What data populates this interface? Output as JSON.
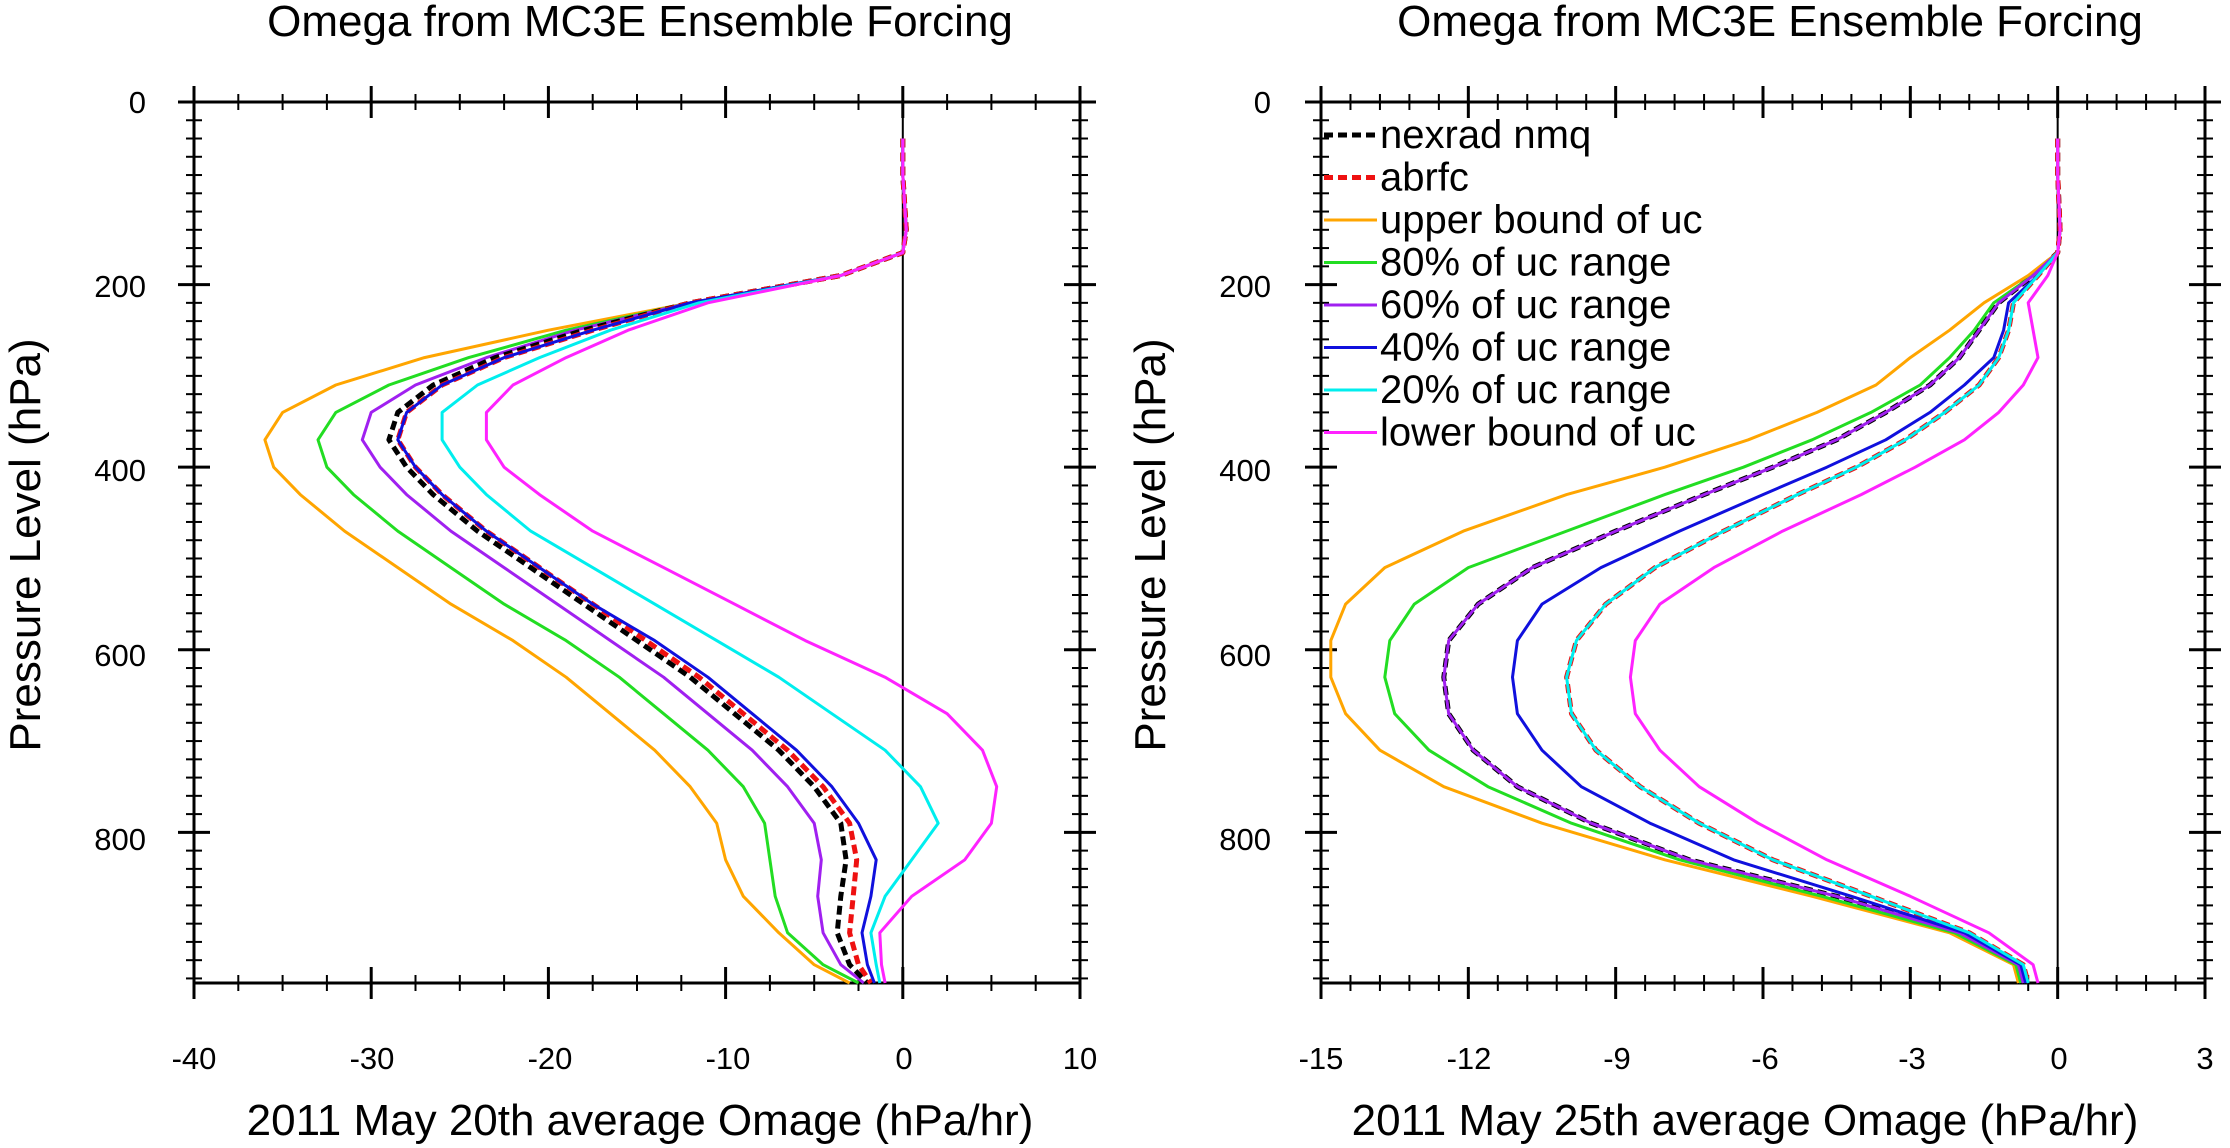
{
  "chart_data": [
    {
      "type": "line",
      "title": "Omega from MC3E Ensemble Forcing",
      "xlabel": "2011 May 20th average Omage (hPa/hr)",
      "ylabel": "Pressure Level (hPa)",
      "xlim": [
        -40,
        10
      ],
      "ylim": [
        965,
        0
      ],
      "y_reversed": true,
      "xticks": [
        "-40",
        "-30",
        "-20",
        "-10",
        "0",
        "10"
      ],
      "yticks": [
        "0",
        "200",
        "400",
        "600",
        "800"
      ],
      "zero_line": true,
      "y_levels": [
        40,
        80,
        140,
        165,
        190,
        220,
        250,
        280,
        310,
        340,
        370,
        400,
        430,
        470,
        510,
        550,
        590,
        630,
        670,
        710,
        750,
        790,
        830,
        870,
        910,
        945,
        965
      ],
      "series": [
        {
          "name": "upper bound of uc",
          "color": "#FFA500",
          "dashed": false,
          "values": [
            0,
            0,
            0.2,
            0,
            -3.5,
            -12,
            -20,
            -27,
            -32,
            -35,
            -36,
            -35.5,
            -34,
            -31.5,
            -28.5,
            -25.5,
            -22,
            -19,
            -16.5,
            -14,
            -12,
            -10.5,
            -10,
            -9,
            -7,
            -5,
            -3
          ]
        },
        {
          "name": "80% of uc range",
          "color": "#22DD22",
          "dashed": false,
          "values": [
            0,
            0,
            0.2,
            0,
            -3.5,
            -12,
            -19,
            -24.5,
            -29,
            -32,
            -33,
            -32.5,
            -31,
            -28.5,
            -25.5,
            -22.5,
            -19,
            -16,
            -13.5,
            -11,
            -9,
            -7.8,
            -7.5,
            -7.2,
            -6.5,
            -4.5,
            -2.5
          ]
        },
        {
          "name": "60% of uc range",
          "color": "#A020F0",
          "dashed": false,
          "values": [
            0,
            0,
            0.2,
            0,
            -3.5,
            -12,
            -18.5,
            -23.5,
            -27.5,
            -30,
            -30.5,
            -29.5,
            -28,
            -25.5,
            -22.5,
            -19.5,
            -16.5,
            -13.5,
            -11,
            -8.5,
            -6.5,
            -5,
            -4.6,
            -4.8,
            -4.5,
            -3.5,
            -2.2
          ]
        },
        {
          "name": "nexrad nmq",
          "color": "#000000",
          "dashed": true,
          "values": [
            0,
            0,
            0.2,
            0,
            -3.5,
            -12,
            -18,
            -23,
            -26.5,
            -28.5,
            -29,
            -28,
            -26.5,
            -24,
            -21,
            -18,
            -15,
            -12,
            -9.5,
            -7,
            -5,
            -3.5,
            -3.2,
            -3.5,
            -3.7,
            -3,
            -2
          ]
        },
        {
          "name": "abrfc",
          "color": "#EE1111",
          "dashed": true,
          "values": [
            0,
            0,
            0.2,
            0,
            -3.5,
            -12,
            -17.5,
            -22.5,
            -26,
            -28,
            -28.5,
            -27.5,
            -26,
            -23.5,
            -20.5,
            -17.5,
            -14.5,
            -11.5,
            -9,
            -6.5,
            -4.5,
            -3,
            -2.6,
            -2.8,
            -3,
            -2.5,
            -1.8
          ]
        },
        {
          "name": "40% of uc range",
          "color": "#1010DD",
          "dashed": false,
          "values": [
            0,
            0,
            0.2,
            0,
            -3.5,
            -12,
            -17.5,
            -22.5,
            -26,
            -28,
            -28.5,
            -27.5,
            -26,
            -23.5,
            -20.5,
            -17.5,
            -14,
            -11,
            -8.5,
            -6,
            -4,
            -2.5,
            -1.5,
            -1.8,
            -2.3,
            -2,
            -1.6
          ]
        },
        {
          "name": "20% of uc range",
          "color": "#00EEEE",
          "dashed": false,
          "values": [
            0,
            0,
            0.2,
            0,
            -3.5,
            -11.5,
            -16.5,
            -20.5,
            -24,
            -26,
            -26,
            -25,
            -23.5,
            -21,
            -17.5,
            -14,
            -10.5,
            -7,
            -4,
            -1,
            1,
            2,
            0.5,
            -1,
            -1.8,
            -1.5,
            -1.3
          ]
        },
        {
          "name": "lower bound of uc",
          "color": "#FF22FF",
          "dashed": false,
          "values": [
            0,
            0,
            0.2,
            0,
            -3.5,
            -11,
            -15.5,
            -19,
            -22,
            -23.5,
            -23.5,
            -22.5,
            -20.5,
            -17.5,
            -13.5,
            -9.5,
            -5.5,
            -1,
            2.5,
            4.5,
            5.3,
            5,
            3.5,
            0.5,
            -1.3,
            -1.2,
            -1
          ]
        }
      ]
    },
    {
      "type": "line",
      "title": "Omega from MC3E Ensemble Forcing",
      "xlabel": "2011 May 25th average Omage (hPa/hr)",
      "ylabel": "Pressure Level (hPa)",
      "xlim": [
        -15,
        3
      ],
      "ylim": [
        965,
        0
      ],
      "y_reversed": true,
      "xticks": [
        "-15",
        "-12",
        "-9",
        "-6",
        "-3",
        "0",
        "3"
      ],
      "yticks": [
        "0",
        "200",
        "400",
        "600",
        "800"
      ],
      "zero_line": true,
      "legend": {
        "position": "top-left"
      },
      "y_levels": [
        40,
        80,
        140,
        165,
        190,
        220,
        250,
        280,
        310,
        340,
        370,
        400,
        430,
        470,
        510,
        550,
        590,
        630,
        670,
        710,
        750,
        790,
        830,
        870,
        910,
        945,
        965
      ],
      "series": [
        {
          "name": "nexrad nmq",
          "color": "#000000",
          "dashed": true,
          "values": [
            0,
            0,
            0.05,
            0,
            -0.5,
            -1.2,
            -1.6,
            -2,
            -2.6,
            -3.5,
            -4.5,
            -5.8,
            -7.2,
            -9,
            -10.7,
            -11.8,
            -12.4,
            -12.5,
            -12.4,
            -11.9,
            -11,
            -9.5,
            -7.5,
            -4.5,
            -2,
            -0.8,
            -0.7
          ]
        },
        {
          "name": "abrfc",
          "color": "#EE1111",
          "dashed": true,
          "values": [
            0,
            0,
            0.05,
            0,
            -0.4,
            -0.9,
            -1,
            -1.2,
            -1.6,
            -2.3,
            -3.1,
            -4.1,
            -5.3,
            -6.8,
            -8.2,
            -9.2,
            -9.8,
            -10,
            -9.9,
            -9.4,
            -8.5,
            -7.3,
            -5.8,
            -3.8,
            -1.8,
            -0.7,
            -0.6
          ]
        },
        {
          "name": "upper bound of uc",
          "color": "#FFA500",
          "dashed": false,
          "values": [
            0,
            0,
            0.05,
            0,
            -0.6,
            -1.5,
            -2.2,
            -3,
            -3.7,
            -4.9,
            -6.3,
            -8,
            -10,
            -12.1,
            -13.7,
            -14.5,
            -14.8,
            -14.8,
            -14.5,
            -13.8,
            -12.5,
            -10.5,
            -8,
            -5,
            -2.2,
            -0.9,
            -0.8
          ]
        },
        {
          "name": "80% of uc range",
          "color": "#22DD22",
          "dashed": false,
          "values": [
            0,
            0,
            0.05,
            0,
            -0.5,
            -1.3,
            -1.7,
            -2.2,
            -2.8,
            -3.8,
            -5,
            -6.4,
            -8,
            -10,
            -12,
            -13.1,
            -13.6,
            -13.7,
            -13.5,
            -12.8,
            -11.6,
            -9.9,
            -7.7,
            -4.8,
            -2.1,
            -0.85,
            -0.75
          ]
        },
        {
          "name": "60% of uc range",
          "color": "#A020F0",
          "dashed": false,
          "values": [
            0,
            0,
            0.05,
            0,
            -0.5,
            -1.2,
            -1.6,
            -2,
            -2.6,
            -3.5,
            -4.5,
            -5.8,
            -7.2,
            -9,
            -10.7,
            -11.8,
            -12.4,
            -12.5,
            -12.4,
            -11.9,
            -11,
            -9.5,
            -7.5,
            -4.5,
            -2,
            -0.8,
            -0.7
          ]
        },
        {
          "name": "40% of uc range",
          "color": "#1010DD",
          "dashed": false,
          "values": [
            0,
            0,
            0.05,
            0,
            -0.4,
            -1,
            -1.1,
            -1.3,
            -1.9,
            -2.6,
            -3.5,
            -4.7,
            -6,
            -7.7,
            -9.3,
            -10.5,
            -11,
            -11.1,
            -11,
            -10.5,
            -9.7,
            -8.3,
            -6.6,
            -4.2,
            -1.9,
            -0.75,
            -0.65
          ]
        },
        {
          "name": "20% of uc range",
          "color": "#00EEEE",
          "dashed": false,
          "values": [
            0,
            0,
            0.05,
            0,
            -0.4,
            -0.9,
            -1,
            -1.2,
            -1.6,
            -2.3,
            -3.1,
            -4.1,
            -5.3,
            -6.8,
            -8.2,
            -9.2,
            -9.8,
            -10,
            -9.9,
            -9.4,
            -8.5,
            -7.3,
            -5.8,
            -3.8,
            -1.8,
            -0.7,
            -0.6
          ]
        },
        {
          "name": "lower bound of uc",
          "color": "#FF22FF",
          "dashed": false,
          "values": [
            0,
            0,
            0.05,
            0,
            -0.2,
            -0.6,
            -0.5,
            -0.4,
            -0.7,
            -1.2,
            -1.9,
            -2.9,
            -4,
            -5.6,
            -7,
            -8.1,
            -8.6,
            -8.7,
            -8.6,
            -8.1,
            -7.3,
            -6.1,
            -4.7,
            -3,
            -1.4,
            -0.5,
            -0.4
          ]
        }
      ]
    }
  ]
}
